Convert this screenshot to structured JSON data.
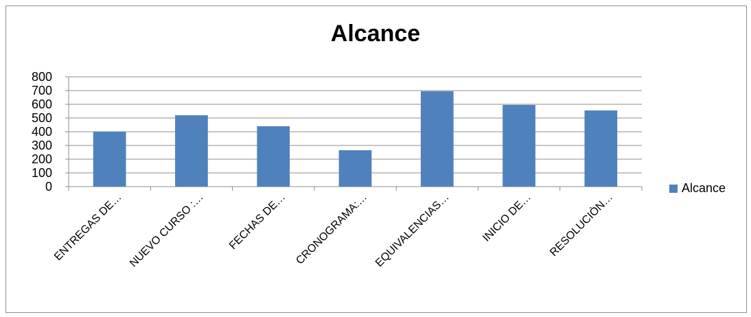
{
  "chart_data": {
    "type": "bar",
    "title": "Alcance",
    "categories": [
      "ENTREGAS DE…",
      "NUEVO CURSO :…",
      "FECHAS DE…",
      "CRONOGRAMA:…",
      "EQUIVALENCIAS…",
      "INICIO DE…",
      "RESOLUCIÒN…"
    ],
    "series": [
      {
        "name": "Alcance",
        "values": [
          400,
          520,
          440,
          265,
          695,
          595,
          555
        ],
        "color": "#4f81bd"
      }
    ],
    "ylim": [
      0,
      800
    ],
    "yticks": [
      0,
      100,
      200,
      300,
      400,
      500,
      600,
      700,
      800
    ],
    "grid": true,
    "legend_position": "right"
  }
}
